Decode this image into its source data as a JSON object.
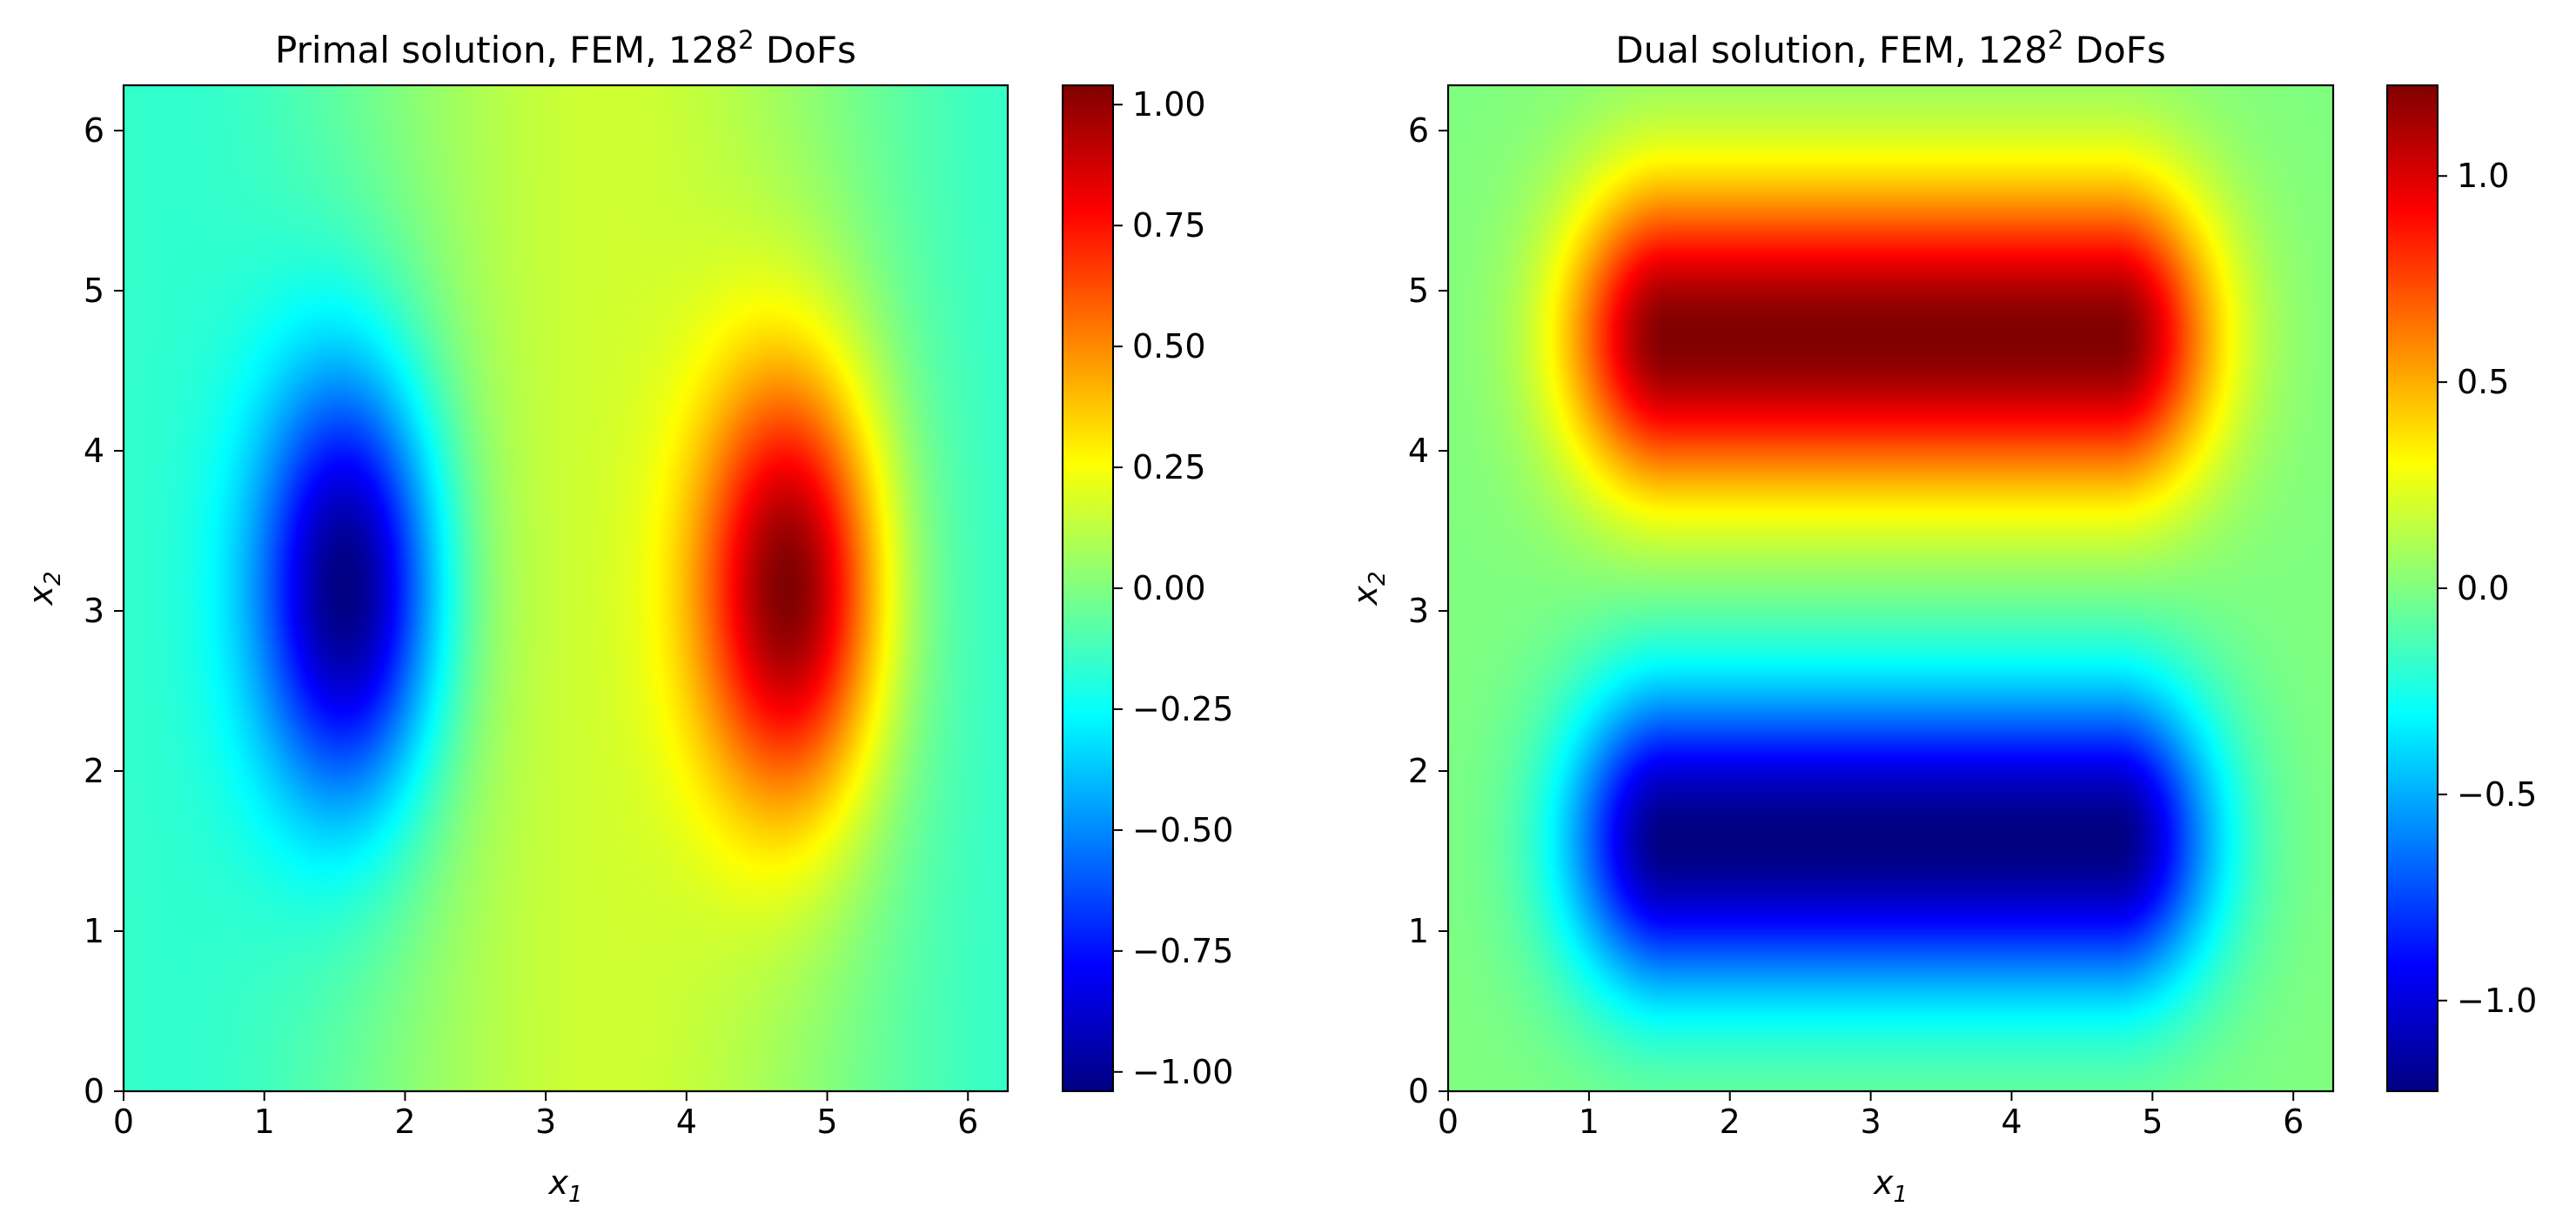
{
  "chart_data": [
    {
      "type": "heatmap",
      "title": "Primal solution, FEM, 128",
      "title_superscript": "2",
      "title_suffix": " DoFs",
      "xlabel": "x",
      "xlabel_sub": "1",
      "ylabel": "x",
      "ylabel_sub": "2",
      "xlim": [
        0,
        6.283
      ],
      "ylim": [
        0,
        6.283
      ],
      "xticks": [
        0,
        1,
        2,
        3,
        4,
        5,
        6
      ],
      "xtick_labels": [
        "0",
        "1",
        "2",
        "3",
        "4",
        "5",
        "6"
      ],
      "yticks": [
        0,
        1,
        2,
        3,
        4,
        5,
        6
      ],
      "ytick_labels": [
        "0",
        "1",
        "2",
        "3",
        "4",
        "5",
        "6"
      ],
      "colormap": "jet",
      "color_range": [
        -1.04,
        1.04
      ],
      "colorbar_ticks": [
        1.0,
        0.75,
        0.5,
        0.25,
        0.0,
        -0.25,
        -0.5,
        -0.75,
        -1.0
      ],
      "colorbar_tick_labels": [
        "1.00",
        "0.75",
        "0.50",
        "0.25",
        "0.00",
        "−0.25",
        "−0.50",
        "−0.75",
        "−1.00"
      ],
      "field": {
        "description_of_values": "minimum about -1.04 near (1.57, 3.14); maximum about 1.04 near (4.71, 3.14); near 0 far from both lobes",
        "extrema": [
          {
            "x": 1.57,
            "y": 3.14,
            "value": -1.04
          },
          {
            "x": 4.71,
            "y": 3.14,
            "value": 1.04
          }
        ]
      }
    },
    {
      "type": "heatmap",
      "title": "Dual solution, FEM, 128",
      "title_superscript": "2",
      "title_suffix": " DoFs",
      "xlabel": "x",
      "xlabel_sub": "1",
      "ylabel": "x",
      "ylabel_sub": "2",
      "xlim": [
        0,
        6.283
      ],
      "ylim": [
        0,
        6.283
      ],
      "xticks": [
        0,
        1,
        2,
        3,
        4,
        5,
        6
      ],
      "xtick_labels": [
        "0",
        "1",
        "2",
        "3",
        "4",
        "5",
        "6"
      ],
      "yticks": [
        0,
        1,
        2,
        3,
        4,
        5,
        6
      ],
      "ytick_labels": [
        "0",
        "1",
        "2",
        "3",
        "4",
        "5",
        "6"
      ],
      "colormap": "jet",
      "color_range": [
        -1.22,
        1.22
      ],
      "colorbar_ticks": [
        1.0,
        0.5,
        0.0,
        -0.5,
        -1.0
      ],
      "colorbar_tick_labels": [
        "1.0",
        "0.5",
        "0.0",
        "−0.5",
        "−1.0"
      ],
      "field": {
        "description_of_values": "maximum about 1.22 along y = 4.71 for x between 1.57 and 4.71; minimum about -1.22 along y = 1.57 for x between 1.57 and 4.71",
        "extrema": [
          {
            "x": 3.14,
            "y": 4.71,
            "value": 1.22
          },
          {
            "x": 3.14,
            "y": 1.57,
            "value": -1.22
          }
        ]
      }
    }
  ]
}
